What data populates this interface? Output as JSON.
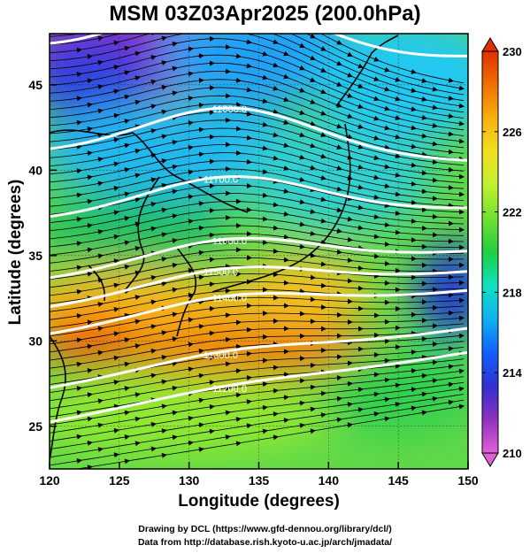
{
  "title": "MSM 03Z03Apr2025 (200.0hPa)",
  "map": {
    "xlabel": "Longitude (degrees)",
    "ylabel": "Latitude  (degrees)",
    "lon_range": [
      120,
      150
    ],
    "lat_range": [
      22.5,
      48
    ],
    "lon_ticks": [
      "120",
      "125",
      "130",
      "135",
      "140",
      "145",
      "150"
    ],
    "lat_ticks": [
      "25",
      "30",
      "35",
      "40",
      "45"
    ],
    "contour_labels": [
      "11900.0",
      "11800.0",
      "11700.0",
      "11600.0",
      "11500.0",
      "11400.0",
      "11300.0",
      "11200.0"
    ],
    "colorbar": {
      "min": 210,
      "max": 230,
      "tick_labels": [
        "230",
        "226",
        "222",
        "218",
        "214",
        "210"
      ],
      "colors": [
        "#e060d8",
        "#9030c0",
        "#3030d0",
        "#1060ff",
        "#10b0f0",
        "#10e0c0",
        "#20d040",
        "#70e030",
        "#c0f030",
        "#f0e020",
        "#f8b010",
        "#f07000",
        "#e03000"
      ]
    }
  },
  "credits": {
    "line1": "Drawing by DCL (https://www.gfd-dennou.org/library/dcl/)",
    "line2": "Data from http://database.rish.kyoto-u.ac.jp/arch/jmadata/"
  }
}
